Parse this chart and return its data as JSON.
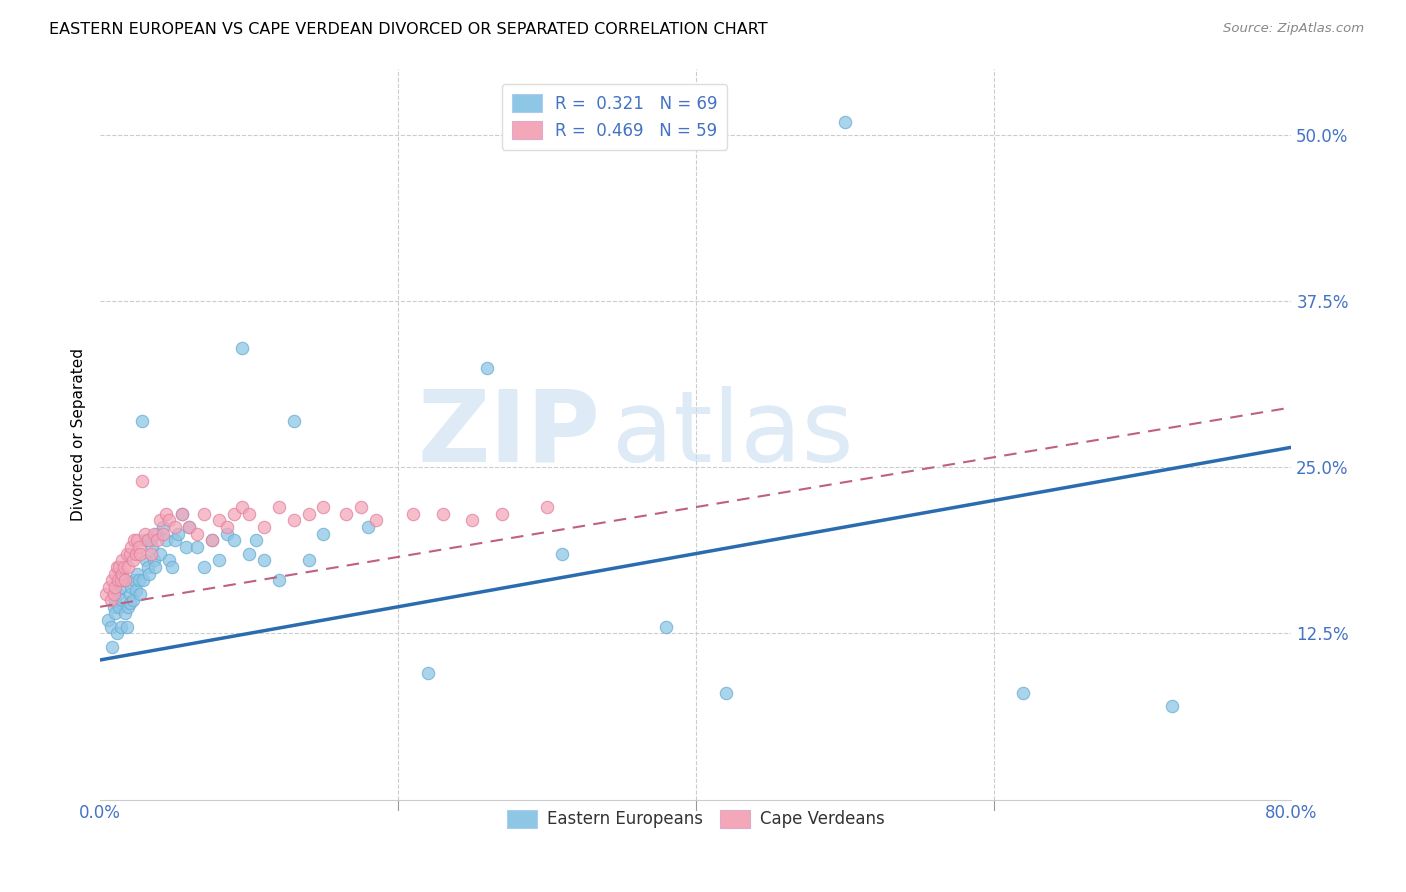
{
  "title": "EASTERN EUROPEAN VS CAPE VERDEAN DIVORCED OR SEPARATED CORRELATION CHART",
  "source": "Source: ZipAtlas.com",
  "xlim": [
    0.0,
    0.8
  ],
  "ylim": [
    0.0,
    0.55
  ],
  "ylabel": "Divorced or Separated",
  "legend_labels": [
    "Eastern Europeans",
    "Cape Verdeans"
  ],
  "legend_r": [
    "R =  0.321",
    "R =  0.469"
  ],
  "legend_n": [
    "N = 69",
    "N = 59"
  ],
  "blue_color": "#8ec6e6",
  "pink_color": "#f4a7b9",
  "blue_line_color": "#2b6cb0",
  "pink_line_color": "#c06080",
  "watermark_zip": "ZIP",
  "watermark_atlas": "atlas",
  "blue_line_x": [
    0.0,
    0.8
  ],
  "blue_line_y_start": 0.105,
  "blue_line_y_end": 0.265,
  "pink_line_x": [
    0.0,
    0.8
  ],
  "pink_line_y_start": 0.145,
  "pink_line_y_end": 0.295,
  "grid_color": "#cccccc",
  "tick_color": "#4472c4",
  "background_color": "#ffffff",
  "blue_scatter_x": [
    0.005,
    0.007,
    0.008,
    0.009,
    0.01,
    0.01,
    0.011,
    0.012,
    0.013,
    0.014,
    0.015,
    0.015,
    0.016,
    0.017,
    0.018,
    0.019,
    0.02,
    0.02,
    0.021,
    0.022,
    0.023,
    0.024,
    0.025,
    0.026,
    0.027,
    0.028,
    0.029,
    0.03,
    0.031,
    0.032,
    0.033,
    0.034,
    0.035,
    0.036,
    0.037,
    0.038,
    0.04,
    0.042,
    0.044,
    0.046,
    0.048,
    0.05,
    0.052,
    0.055,
    0.058,
    0.06,
    0.065,
    0.07,
    0.075,
    0.08,
    0.085,
    0.09,
    0.095,
    0.1,
    0.105,
    0.11,
    0.12,
    0.13,
    0.14,
    0.15,
    0.18,
    0.22,
    0.26,
    0.31,
    0.38,
    0.42,
    0.5,
    0.62,
    0.72
  ],
  "blue_scatter_y": [
    0.135,
    0.13,
    0.115,
    0.145,
    0.15,
    0.14,
    0.125,
    0.155,
    0.145,
    0.13,
    0.16,
    0.15,
    0.165,
    0.14,
    0.13,
    0.145,
    0.155,
    0.148,
    0.16,
    0.15,
    0.165,
    0.158,
    0.17,
    0.165,
    0.155,
    0.285,
    0.165,
    0.195,
    0.18,
    0.175,
    0.17,
    0.195,
    0.19,
    0.18,
    0.175,
    0.2,
    0.185,
    0.205,
    0.195,
    0.18,
    0.175,
    0.195,
    0.2,
    0.215,
    0.19,
    0.205,
    0.19,
    0.175,
    0.195,
    0.18,
    0.2,
    0.195,
    0.34,
    0.185,
    0.195,
    0.18,
    0.165,
    0.285,
    0.18,
    0.2,
    0.205,
    0.095,
    0.325,
    0.185,
    0.13,
    0.08,
    0.51,
    0.08,
    0.07
  ],
  "pink_scatter_x": [
    0.004,
    0.006,
    0.007,
    0.008,
    0.009,
    0.01,
    0.01,
    0.011,
    0.012,
    0.013,
    0.014,
    0.015,
    0.015,
    0.016,
    0.017,
    0.018,
    0.019,
    0.02,
    0.021,
    0.022,
    0.023,
    0.024,
    0.025,
    0.026,
    0.027,
    0.028,
    0.03,
    0.032,
    0.034,
    0.036,
    0.038,
    0.04,
    0.042,
    0.044,
    0.046,
    0.05,
    0.055,
    0.06,
    0.065,
    0.07,
    0.075,
    0.08,
    0.085,
    0.09,
    0.095,
    0.1,
    0.11,
    0.12,
    0.13,
    0.14,
    0.15,
    0.165,
    0.175,
    0.185,
    0.21,
    0.23,
    0.25,
    0.27,
    0.3
  ],
  "pink_scatter_y": [
    0.155,
    0.16,
    0.15,
    0.165,
    0.155,
    0.17,
    0.16,
    0.175,
    0.165,
    0.175,
    0.165,
    0.18,
    0.17,
    0.175,
    0.165,
    0.185,
    0.175,
    0.185,
    0.19,
    0.18,
    0.195,
    0.185,
    0.195,
    0.19,
    0.185,
    0.24,
    0.2,
    0.195,
    0.185,
    0.2,
    0.195,
    0.21,
    0.2,
    0.215,
    0.21,
    0.205,
    0.215,
    0.205,
    0.2,
    0.215,
    0.195,
    0.21,
    0.205,
    0.215,
    0.22,
    0.215,
    0.205,
    0.22,
    0.21,
    0.215,
    0.22,
    0.215,
    0.22,
    0.21,
    0.215,
    0.215,
    0.21,
    0.215,
    0.22
  ]
}
